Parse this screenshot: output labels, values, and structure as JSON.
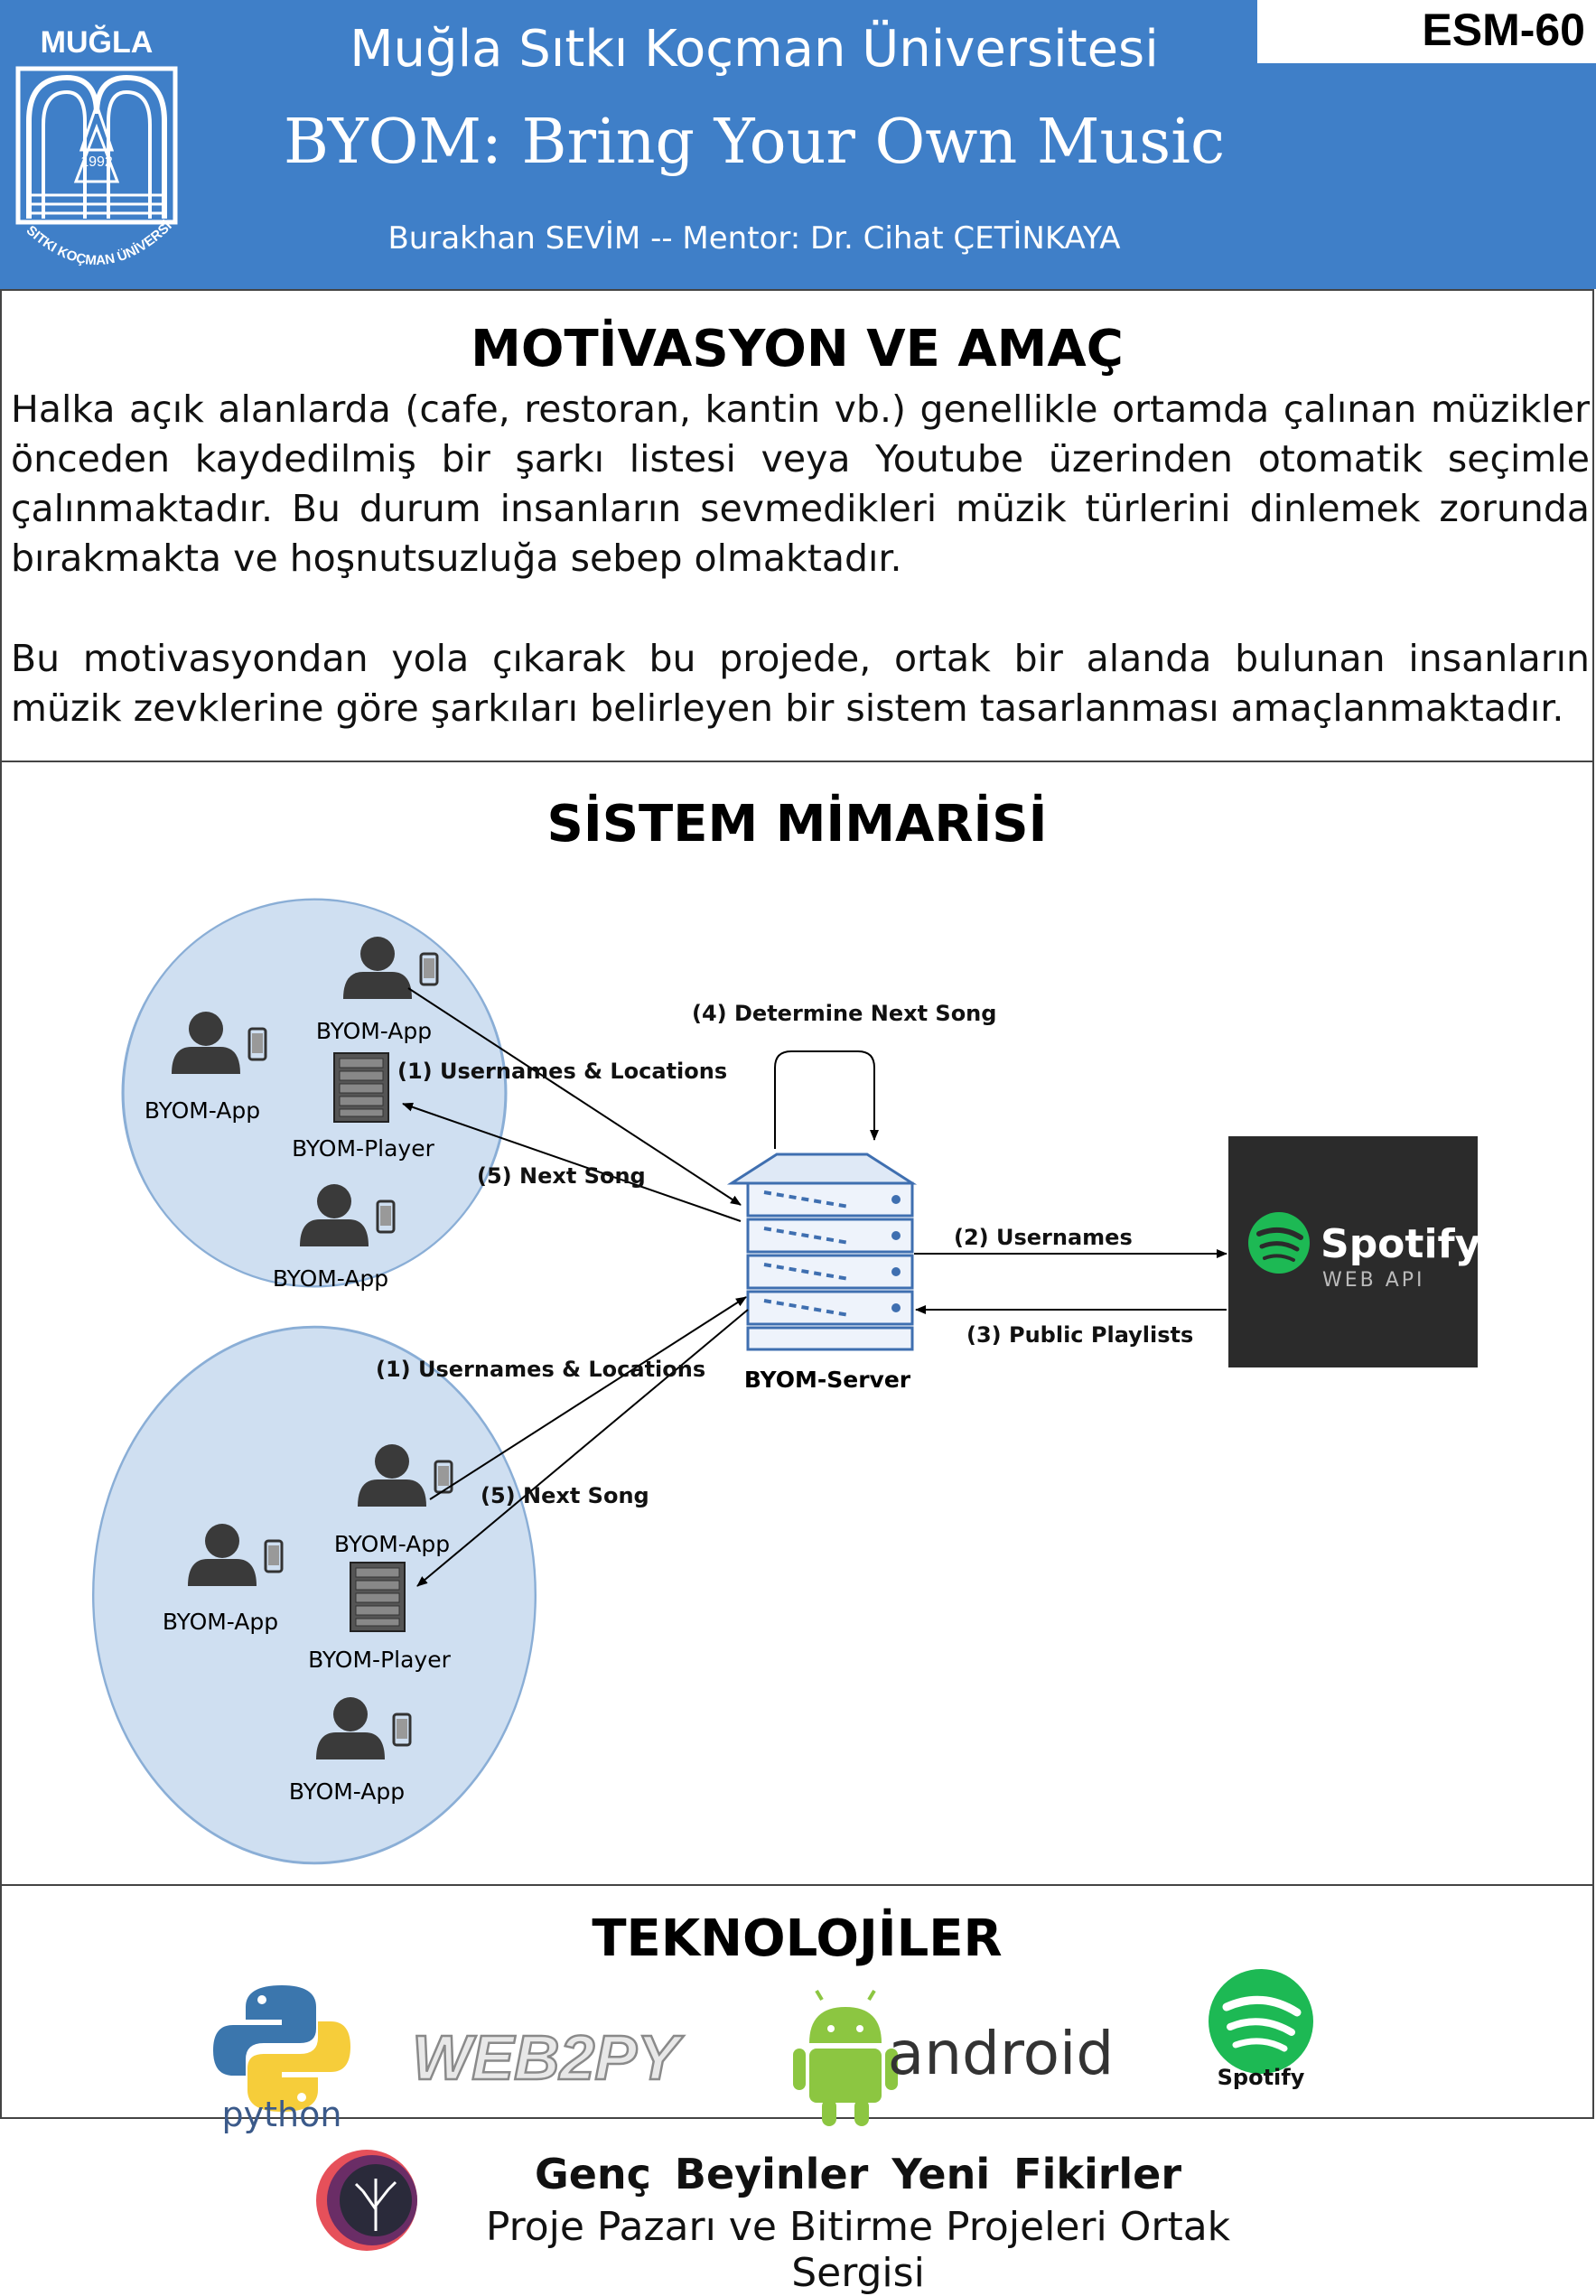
{
  "header": {
    "logo_text_top": "MUĞLA",
    "logo_text_ring": "SITKI KOÇMAN ÜNİVERSİTESİ",
    "logo_year": "1992",
    "university": "Muğla Sıtkı Koçman Üniversitesi",
    "title": "BYOM: Bring Your Own Music",
    "authors": "Burakhan SEVİM --   Mentor: Dr. Cihat ÇETİNKAYA",
    "code": "ESM-60"
  },
  "motivation": {
    "title": "MOTİVASYON VE AMAÇ",
    "paragraph1": "Halka açık alanlarda (cafe, restoran, kantin vb.) genellikle ortamda çalınan müzikler önceden kaydedilmiş bir şarkı listesi veya Youtube üzerinden otomatik seçimle çalınmaktadır. Bu durum insanların sevmedikleri müzik türlerini dinlemek zorunda bırakmakta ve hoşnutsuzluğa sebep olmaktadır.",
    "paragraph2": "Bu motivasyondan yola çıkarak bu projede, ortak bir alanda bulunan insanların müzik zevklerine göre şarkıları belirleyen bir sistem tasarlanması amaçlanmaktadır."
  },
  "architecture": {
    "title": "SİSTEM MİMARİSİ",
    "labels": {
      "app": "BYOM-App",
      "player": "BYOM-Player",
      "server": "BYOM-Server",
      "usernames_locations": "(1) Usernames & Locations",
      "usernames": "(2) Usernames",
      "public_playlists": "(3) Public Playlists",
      "determine_next": "(4) Determine Next Song",
      "next_song": "(5) Next Song"
    },
    "spotify_brand": "Spotify",
    "spotify_sub": "WEB API"
  },
  "technologies": {
    "title": "TEKNOLOJİLER",
    "python": "python",
    "web2py": "WEB2PY",
    "android": "android",
    "spotify": "Spotify"
  },
  "footer": {
    "line1": "Genç Beyinler Yeni Fikirler",
    "line2": "Proje Pazarı ve Bitirme Projeleri Ortak Sergisi"
  },
  "colors": {
    "header_blue": "#3f7fc8",
    "circle_fill": "#cfdff1",
    "spotify_green": "#1db954",
    "android_green": "#8cc641"
  }
}
